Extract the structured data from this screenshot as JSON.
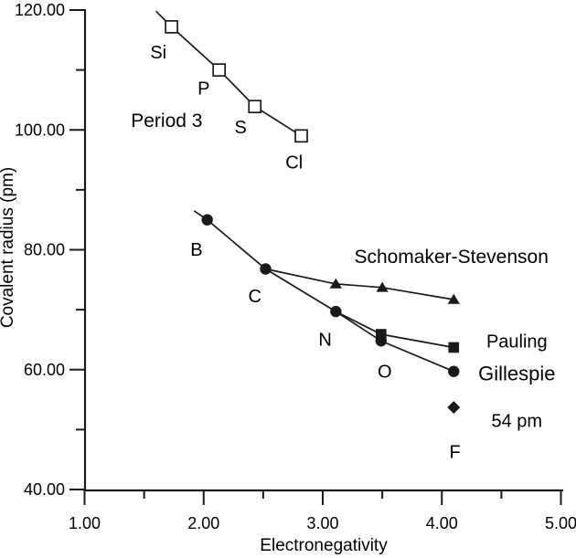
{
  "figure": {
    "background": "#ffffff",
    "ink_color": "#1a1a1a"
  },
  "chart_data": {
    "type": "line",
    "title": "",
    "xlabel": "Electronegativity",
    "ylabel": "Covalent radius (pm)",
    "xlim": [
      1.0,
      5.0
    ],
    "ylim": [
      40.0,
      120.0
    ],
    "grid": false,
    "legend": "inline-annotations",
    "x_ticks": {
      "major": [
        {
          "v": 1.0,
          "label": "1.00"
        },
        {
          "v": 2.0,
          "label": "2.00"
        },
        {
          "v": 3.0,
          "label": "3.00"
        },
        {
          "v": 4.0,
          "label": "4.00"
        },
        {
          "v": 5.0,
          "label": "5.00"
        }
      ],
      "minor": [
        1.5,
        2.5,
        3.5,
        4.5
      ]
    },
    "y_ticks": {
      "major": [
        {
          "v": 40.0,
          "label": "40.00"
        },
        {
          "v": 60.0,
          "label": "60.00"
        },
        {
          "v": 80.0,
          "label": "80.00"
        },
        {
          "v": 100.0,
          "label": "100.00"
        },
        {
          "v": 120.0,
          "label": "120.00"
        }
      ],
      "minor": [
        50.0,
        70.0,
        90.0,
        110.0
      ]
    },
    "series": [
      {
        "name": "Period 3",
        "marker": "open-square",
        "points": [
          {
            "x": 1.6,
            "y": 119.8,
            "marker": false
          },
          {
            "x": 1.73,
            "y": 117.2,
            "marker": true,
            "element": "Si"
          },
          {
            "x": 2.13,
            "y": 110.0,
            "marker": true,
            "element": "P"
          },
          {
            "x": 2.43,
            "y": 103.9,
            "marker": true,
            "element": "S"
          },
          {
            "x": 2.82,
            "y": 99.0,
            "marker": true,
            "element": "Cl"
          }
        ]
      },
      {
        "name": "Gillespie",
        "marker": "filled-circle",
        "points": [
          {
            "x": 1.92,
            "y": 86.5,
            "marker": false
          },
          {
            "x": 2.03,
            "y": 85.0,
            "marker": true,
            "element": "B"
          },
          {
            "x": 2.52,
            "y": 76.8,
            "marker": true,
            "element": "C"
          },
          {
            "x": 3.11,
            "y": 69.7,
            "marker": true,
            "element": "N"
          },
          {
            "x": 3.49,
            "y": 64.8,
            "marker": true,
            "element": "O"
          },
          {
            "x": 4.1,
            "y": 59.7,
            "marker": true,
            "element": "F"
          }
        ]
      },
      {
        "name": "Pauling",
        "marker": "filled-square",
        "points": [
          {
            "x": 3.11,
            "y": 69.7,
            "marker": false
          },
          {
            "x": 3.49,
            "y": 65.9,
            "marker": true,
            "element": "O"
          },
          {
            "x": 4.1,
            "y": 63.7,
            "marker": true,
            "element": "F"
          }
        ]
      },
      {
        "name": "Schomaker-Stevenson",
        "marker": "filled-triangle",
        "points": [
          {
            "x": 2.52,
            "y": 76.8,
            "marker": false
          },
          {
            "x": 3.11,
            "y": 74.3,
            "marker": true,
            "element": "N"
          },
          {
            "x": 3.5,
            "y": 73.7,
            "marker": true,
            "element": "O"
          },
          {
            "x": 4.1,
            "y": 71.7,
            "marker": true,
            "element": "F"
          }
        ]
      },
      {
        "name": "54 pm",
        "marker": "filled-diamond",
        "points": [
          {
            "x": 4.1,
            "y": 53.7,
            "marker": true,
            "element": "F"
          }
        ]
      }
    ],
    "annotations": [
      {
        "text": "Si",
        "x": 1.62,
        "y": 113.0,
        "size": 20
      },
      {
        "text": "P",
        "x": 2.0,
        "y": 107.0,
        "size": 20
      },
      {
        "text": "S",
        "x": 2.31,
        "y": 100.5,
        "size": 20
      },
      {
        "text": "Cl",
        "x": 2.76,
        "y": 94.6,
        "size": 20
      },
      {
        "text": "Period 3",
        "x": 1.69,
        "y": 101.6,
        "size": 21
      },
      {
        "text": "B",
        "x": 1.94,
        "y": 80.1,
        "size": 20
      },
      {
        "text": "C",
        "x": 2.43,
        "y": 72.3,
        "size": 20
      },
      {
        "text": "N",
        "x": 3.02,
        "y": 65.1,
        "size": 20
      },
      {
        "text": "O",
        "x": 3.52,
        "y": 59.7,
        "size": 20
      },
      {
        "text": "F",
        "x": 4.11,
        "y": 46.3,
        "size": 20
      },
      {
        "text": "Schomaker-Stevenson",
        "x": 4.08,
        "y": 78.9,
        "size": 21
      },
      {
        "text": "Pauling",
        "x": 4.63,
        "y": 64.8,
        "size": 20
      },
      {
        "text": "Gillespie",
        "x": 4.63,
        "y": 59.4,
        "size": 22
      },
      {
        "text": "54 pm",
        "x": 4.63,
        "y": 51.5,
        "size": 20
      }
    ]
  }
}
